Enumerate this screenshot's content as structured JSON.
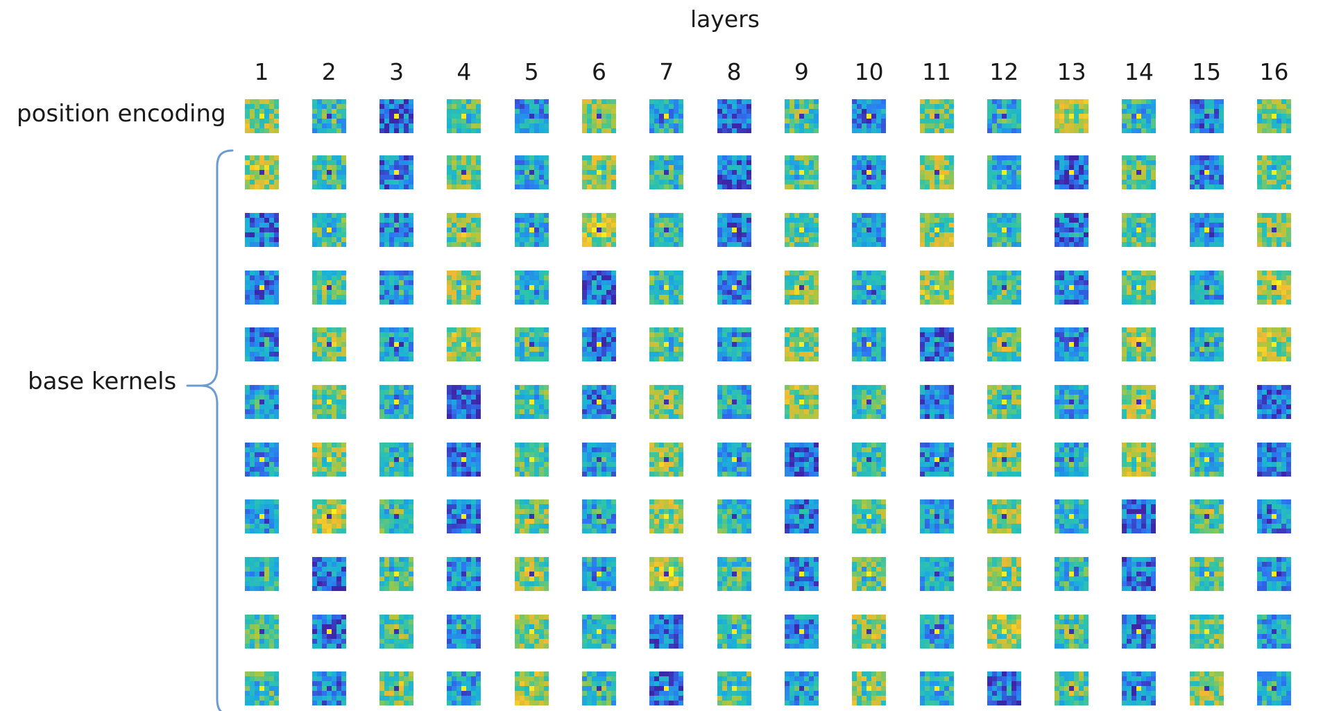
{
  "figure": {
    "title": "layers",
    "layers": [
      "1",
      "2",
      "3",
      "4",
      "5",
      "6",
      "7",
      "8",
      "9",
      "10",
      "11",
      "12",
      "13",
      "14",
      "15",
      "16"
    ],
    "row_labels": {
      "position_encoding": "position encoding",
      "base_kernels": "base kernels"
    },
    "base_kernel_rows": 10,
    "kernel_grid": "7x7",
    "colormap": [
      "#3e26a8",
      "#2f74f3",
      "#1bb0da",
      "#2fc4a8",
      "#a7c742",
      "#f1b933",
      "#f9f21c"
    ],
    "brace_color": "#6a9bd1"
  }
}
